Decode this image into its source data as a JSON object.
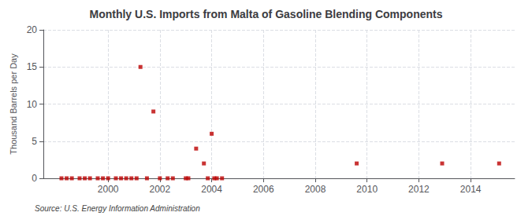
{
  "chart_data": {
    "type": "scatter",
    "title": "Monthly U.S. Imports from Malta of Gasoline Blending Components",
    "ylabel": "Thousand Barrels per Day",
    "source": "Source: U.S. Energy Information Administration",
    "color": "#bb0000",
    "marker": "square",
    "grid": true,
    "xlim": [
      1997.5,
      2015.7
    ],
    "ylim": [
      0,
      20
    ],
    "xticks": [
      2000,
      2002,
      2004,
      2006,
      2008,
      2010,
      2012,
      2014
    ],
    "yticks": [
      0,
      5,
      10,
      15,
      20
    ],
    "x": [
      1998.2,
      1998.4,
      1998.6,
      1998.9,
      1999.1,
      1999.3,
      1999.6,
      1999.8,
      2000.0,
      2000.3,
      2000.5,
      2000.7,
      2000.9,
      2001.1,
      2001.25,
      2001.5,
      2001.75,
      2002.0,
      2002.3,
      2002.5,
      2003.0,
      2003.1,
      2003.4,
      2003.7,
      2003.85,
      2004.0,
      2004.1,
      2004.2,
      2004.4,
      2009.6,
      2012.9,
      2015.1
    ],
    "values": [
      0,
      0,
      0,
      0,
      0,
      0,
      0,
      0,
      0,
      0,
      0,
      0,
      0,
      0,
      15,
      0,
      9,
      0,
      0,
      0,
      0,
      0,
      4,
      2,
      0,
      6,
      0,
      0,
      0,
      2,
      2,
      2
    ]
  }
}
